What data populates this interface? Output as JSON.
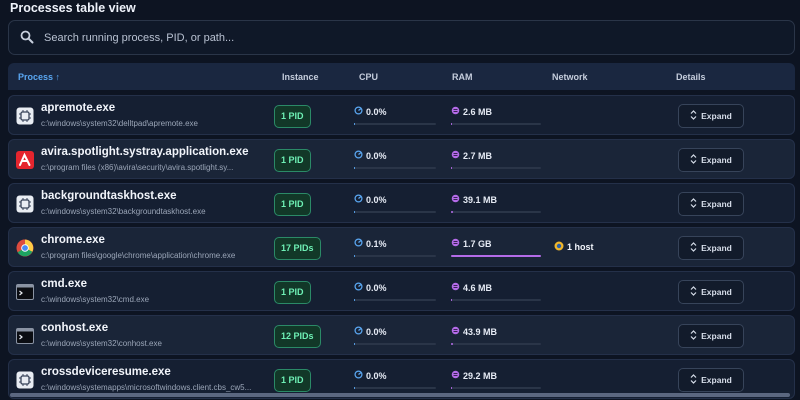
{
  "page_title": "Processes table view",
  "search": {
    "placeholder": "Search running process, PID, or path..."
  },
  "columns": {
    "process": "Process ↑",
    "instance": "Instance",
    "cpu": "CPU",
    "ram": "RAM",
    "network": "Network",
    "details": "Details"
  },
  "expand_label": "Expand",
  "colors": {
    "accent": "#5aa7f2",
    "badge_text": "#6ef0b5",
    "ram_bar": "#b46be8"
  },
  "rows": [
    {
      "name": "apremote.exe",
      "path": "c:\\windows\\system32\\delltpad\\apremote.exe",
      "icon": "app-chip-icon",
      "instance": "1 PID",
      "cpu": "0.0%",
      "cpu_fraction": 0.0,
      "ram": "2.6 MB",
      "ram_fraction": 0.0,
      "network": ""
    },
    {
      "name": "avira.spotlight.systray.application.exe",
      "path": "c:\\program files (x86)\\avira\\security\\avira.spotlight.sy...",
      "icon": "avira-icon",
      "instance": "1 PID",
      "cpu": "0.0%",
      "cpu_fraction": 0.0,
      "ram": "2.7 MB",
      "ram_fraction": 0.0,
      "network": ""
    },
    {
      "name": "backgroundtaskhost.exe",
      "path": "c:\\windows\\system32\\backgroundtaskhost.exe",
      "icon": "app-chip-icon",
      "instance": "1 PID",
      "cpu": "0.0%",
      "cpu_fraction": 0.0,
      "ram": "39.1 MB",
      "ram_fraction": 0.02,
      "network": ""
    },
    {
      "name": "chrome.exe",
      "path": "c:\\program files\\google\\chrome\\application\\chrome.exe",
      "icon": "chrome-icon",
      "instance": "17 PIDs",
      "cpu": "0.1%",
      "cpu_fraction": 0.01,
      "ram": "1.7 GB",
      "ram_fraction": 1.0,
      "network": "1 host"
    },
    {
      "name": "cmd.exe",
      "path": "c:\\windows\\system32\\cmd.exe",
      "icon": "terminal-icon",
      "instance": "1 PID",
      "cpu": "0.0%",
      "cpu_fraction": 0.0,
      "ram": "4.6 MB",
      "ram_fraction": 0.0,
      "network": ""
    },
    {
      "name": "conhost.exe",
      "path": "c:\\windows\\system32\\conhost.exe",
      "icon": "terminal-icon",
      "instance": "12 PIDs",
      "cpu": "0.0%",
      "cpu_fraction": 0.0,
      "ram": "43.9 MB",
      "ram_fraction": 0.02,
      "network": ""
    },
    {
      "name": "crossdeviceresume.exe",
      "path": "c:\\windows\\systemapps\\microsoftwindows.client.cbs_cw5...",
      "icon": "app-chip-icon",
      "instance": "1 PID",
      "cpu": "0.0%",
      "cpu_fraction": 0.0,
      "ram": "29.2 MB",
      "ram_fraction": 0.015,
      "network": ""
    }
  ]
}
